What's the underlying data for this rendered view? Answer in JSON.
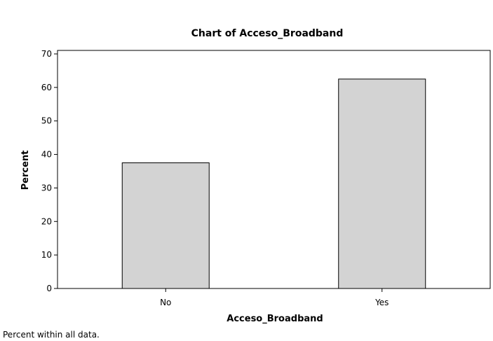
{
  "chart_data": {
    "type": "bar",
    "title": "Chart of Acceso_Broadband",
    "xlabel": "Acceso_Broadband",
    "ylabel": "Percent",
    "categories": [
      "No",
      "Yes"
    ],
    "values": [
      37.5,
      62.5
    ],
    "ylim": [
      0,
      70
    ],
    "yticks": [
      0,
      10,
      20,
      30,
      40,
      50,
      60,
      70
    ],
    "grid": false,
    "bar_color": "#d3d3d3",
    "bar_edge_color": "#000000"
  },
  "footnote": "Percent within all data."
}
